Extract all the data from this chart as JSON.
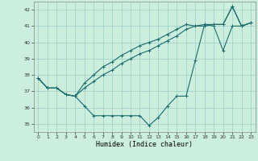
{
  "xlabel": "Humidex (Indice chaleur)",
  "background_color": "#cceedd",
  "grid_color": "#99cccc",
  "line_color": "#1a6b6b",
  "x": [
    0,
    1,
    2,
    3,
    4,
    5,
    6,
    7,
    8,
    9,
    10,
    11,
    12,
    13,
    14,
    15,
    16,
    17,
    18,
    19,
    20,
    21,
    22,
    23
  ],
  "line1": [
    37.8,
    37.2,
    37.2,
    36.8,
    36.7,
    37.5,
    38.0,
    38.5,
    38.8,
    39.2,
    39.5,
    39.8,
    40.0,
    40.2,
    40.5,
    40.8,
    41.1,
    41.0,
    41.0,
    41.1,
    41.1,
    42.2,
    41.0,
    41.2
  ],
  "line2": [
    37.8,
    37.2,
    37.2,
    36.8,
    36.7,
    37.2,
    37.6,
    38.0,
    38.3,
    38.7,
    39.0,
    39.3,
    39.5,
    39.8,
    40.1,
    40.4,
    40.8,
    41.0,
    41.1,
    41.1,
    41.1,
    42.2,
    41.0,
    41.2
  ],
  "line3": [
    37.8,
    37.2,
    37.2,
    36.8,
    36.7,
    36.1,
    35.5,
    35.5,
    35.5,
    35.5,
    35.5,
    35.5,
    34.9,
    35.4,
    36.1,
    36.7,
    36.7,
    38.9,
    41.1,
    41.0,
    39.5,
    41.0,
    41.0,
    41.2
  ],
  "ylim": [
    34.5,
    42.5
  ],
  "yticks": [
    35,
    36,
    37,
    38,
    39,
    40,
    41,
    42
  ],
  "xticks": [
    0,
    1,
    2,
    3,
    4,
    5,
    6,
    7,
    8,
    9,
    10,
    11,
    12,
    13,
    14,
    15,
    16,
    17,
    18,
    19,
    20,
    21,
    22,
    23
  ],
  "xlim": [
    -0.5,
    23.5
  ]
}
